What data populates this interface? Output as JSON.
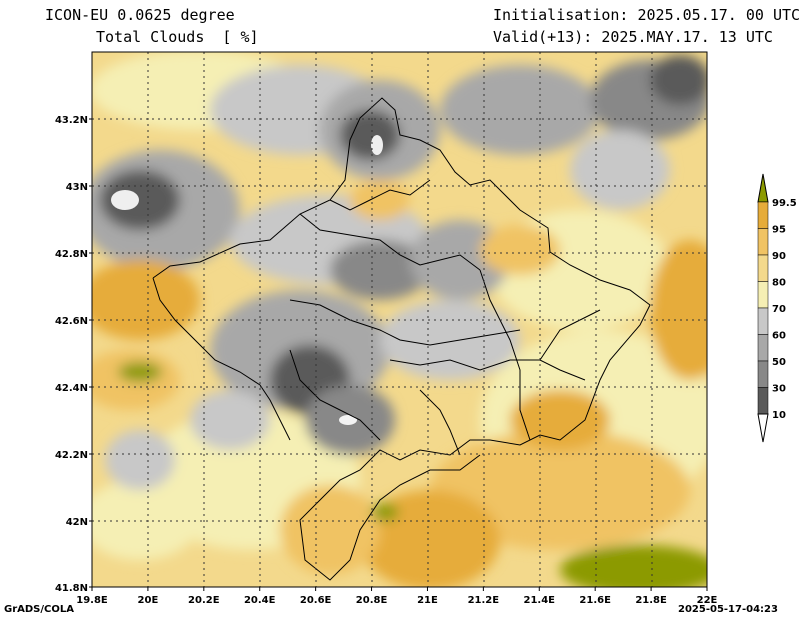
{
  "header": {
    "model": "ICON-EU 0.0625 degree",
    "parameter": "Total Clouds  [ %]",
    "init": "Initialisation: 2025.05.17. 00 UTC",
    "valid": "Valid(+13): 2025.MAY.17. 13 UTC"
  },
  "axes": {
    "lon_ticks": [
      "19.8E",
      "20E",
      "20.2E",
      "20.4E",
      "20.6E",
      "20.8E",
      "21E",
      "21.2E",
      "21.4E",
      "21.6E",
      "21.8E",
      "22E"
    ],
    "lat_ticks": [
      "43.2N",
      "43N",
      "42.8N",
      "42.6N",
      "42.4N",
      "42.2N",
      "42N",
      "41.8N"
    ]
  },
  "legend": {
    "levels": [
      "99.5",
      "95",
      "90",
      "80",
      "70",
      "60",
      "50",
      "30",
      "10"
    ],
    "colors": [
      "#8c9a00",
      "#e6ac3a",
      "#f0c364",
      "#f3d98c",
      "#f5efb4",
      "#c8c8c8",
      "#a8a8a8",
      "#888888",
      "#5a5a5a",
      "#ffffff"
    ]
  },
  "footer": {
    "left": "GrADS/COLA",
    "right": "2025-05-17-04:23"
  }
}
